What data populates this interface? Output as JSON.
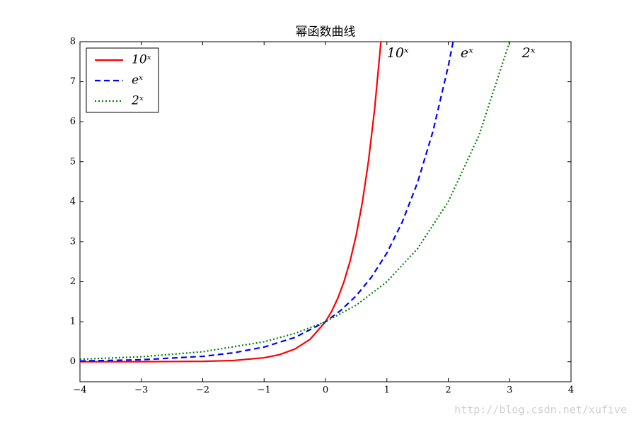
{
  "chart_data": {
    "type": "line",
    "title": "幂函数曲线",
    "xlim": [
      -4,
      4
    ],
    "ylim": [
      -0.5,
      8
    ],
    "xticks": [
      {
        "value": -4,
        "label": "−4"
      },
      {
        "value": -3,
        "label": "−3"
      },
      {
        "value": -2,
        "label": "−2"
      },
      {
        "value": -1,
        "label": "−1"
      },
      0,
      1,
      2,
      3,
      4
    ],
    "yticks": [
      0,
      1,
      2,
      3,
      4,
      5,
      6,
      7,
      8
    ],
    "legend": "upper-left",
    "series": [
      {
        "name": "10ˣ",
        "color": "#ff0000",
        "dash": "solid",
        "x": [
          -4,
          -3,
          -2,
          -1.5,
          -1,
          -0.75,
          -0.5,
          -0.25,
          0,
          0.1,
          0.2,
          0.3,
          0.4,
          0.5,
          0.6,
          0.7,
          0.8,
          0.903
        ],
        "values": [
          0.0001,
          0.001,
          0.01,
          0.0316,
          0.1,
          0.1778,
          0.3162,
          0.5623,
          1,
          1.2589,
          1.5849,
          1.9953,
          2.5119,
          3.1623,
          3.9811,
          5.0119,
          6.3096,
          8.0
        ]
      },
      {
        "name": "eˣ",
        "color": "#0000ff",
        "dash": "dashed",
        "x": [
          -4,
          -3,
          -2,
          -1.5,
          -1,
          -0.5,
          0,
          0.25,
          0.5,
          0.75,
          1,
          1.25,
          1.5,
          1.75,
          2,
          2.079
        ],
        "values": [
          0.0183,
          0.0498,
          0.1353,
          0.2231,
          0.3679,
          0.6065,
          1,
          1.284,
          1.6487,
          2.117,
          2.7183,
          3.4903,
          4.4817,
          5.7546,
          7.3891,
          8.0
        ]
      },
      {
        "name": "2ˣ",
        "color": "#008000",
        "dash": "dotted",
        "x": [
          -4,
          -3,
          -2,
          -1,
          -0.5,
          0,
          0.5,
          1,
          1.5,
          2,
          2.5,
          3
        ],
        "values": [
          0.0625,
          0.125,
          0.25,
          0.5,
          0.7071,
          1,
          1.4142,
          2,
          2.8284,
          4,
          5.6569,
          8
        ]
      }
    ],
    "annotations": [
      {
        "text": "10ˣ",
        "x": 1.0,
        "y": 7.7
      },
      {
        "text": "eˣ",
        "x": 2.2,
        "y": 7.7
      },
      {
        "text": "2ˣ",
        "x": 3.2,
        "y": 7.7
      }
    ],
    "watermark": "http://blog.csdn.net/xufive"
  }
}
